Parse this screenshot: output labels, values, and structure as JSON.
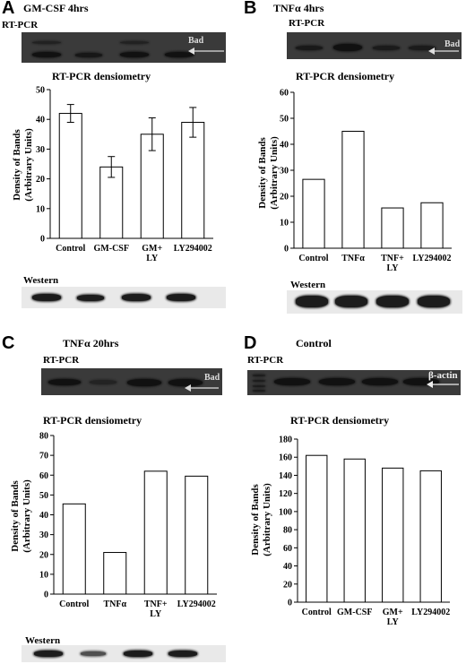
{
  "panels": [
    {
      "letter": "A",
      "title": "GM-CSF 4hrs",
      "rtpcr_label": "RT-PCR",
      "gel_label": "Bad",
      "densitometry_label": "RT-PCR densiometry",
      "western_label": "Western"
    },
    {
      "letter": "B",
      "title": "TNFα 4hrs",
      "rtpcr_label": "RT-PCR",
      "gel_label": "Bad",
      "densitometry_label": "RT-PCR densiometry",
      "western_label": "Western"
    },
    {
      "letter": "C",
      "title": "TNFα 20hrs",
      "rtpcr_label": "RT-PCR",
      "gel_label": "Bad",
      "densitometry_label": "RT-PCR densiometry",
      "western_label": "Western"
    },
    {
      "letter": "D",
      "title": "Control",
      "rtpcr_label": "RT-PCR",
      "gel_label": "β-actin",
      "densitometry_label": "RT-PCR densiometry",
      "western_label": ""
    }
  ],
  "chart_data": [
    {
      "type": "bar",
      "categories": [
        "Control",
        "GM-CSF",
        "GM+\nLY",
        "LY294002"
      ],
      "values": [
        42,
        24,
        35,
        39
      ],
      "errors": [
        3,
        3.5,
        5.5,
        5
      ],
      "ylabel": "Density of Bands\n(Arbitrary Units)",
      "ylim": [
        0,
        50
      ],
      "yticks": [
        0,
        10,
        20,
        30,
        40,
        50
      ]
    },
    {
      "type": "bar",
      "categories": [
        "Control",
        "TNFα",
        "TNF+\nLY",
        "LY294002"
      ],
      "values": [
        26.5,
        45,
        15.5,
        17.5
      ],
      "ylabel": "Density of Bands\n(Arbitrary Units)",
      "ylim": [
        0,
        60
      ],
      "yticks": [
        0,
        10,
        20,
        30,
        40,
        50,
        60
      ]
    },
    {
      "type": "bar",
      "categories": [
        "Control",
        "TNFα",
        "TNF+\nLY",
        "LY294002"
      ],
      "values": [
        45.5,
        21,
        62,
        59.5
      ],
      "ylabel": "Density of Bands\n(Arbitrary Units)",
      "ylim": [
        0,
        80
      ],
      "yticks": [
        0,
        10,
        20,
        30,
        40,
        50,
        60,
        70,
        80
      ]
    },
    {
      "type": "bar",
      "categories": [
        "Control",
        "GM-CSF",
        "GM+\nLY",
        "LY294002"
      ],
      "values": [
        162,
        158,
        148,
        145
      ],
      "ylabel": "Density of Bands\n(Arbitrary Units)",
      "ylim": [
        0,
        180
      ],
      "yticks": [
        0,
        20,
        40,
        60,
        80,
        100,
        120,
        140,
        160,
        180
      ]
    }
  ]
}
